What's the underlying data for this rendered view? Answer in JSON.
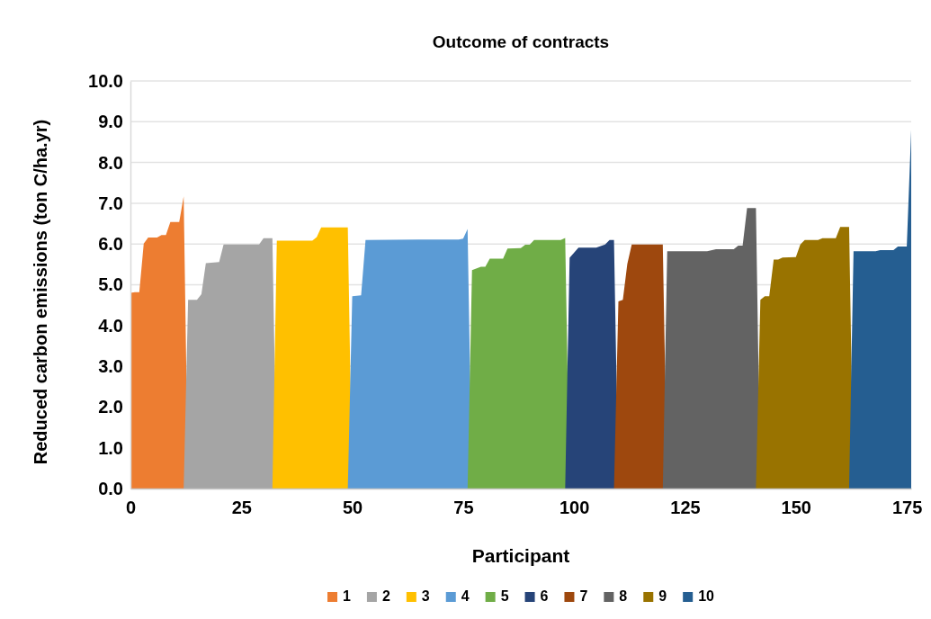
{
  "chart_data": {
    "type": "area",
    "title": "Outcome of contracts",
    "xlabel": "Participant",
    "ylabel": "Reduced carbon emissions (ton C/ha.yr)",
    "xlim": [
      0,
      176
    ],
    "xticks": [
      0,
      25,
      50,
      75,
      100,
      125,
      150,
      175
    ],
    "ylim": [
      0,
      10
    ],
    "yticks": [
      {
        "value": 0,
        "label": "0.0"
      },
      {
        "value": 1,
        "label": "1.0"
      },
      {
        "value": 2,
        "label": "2.0"
      },
      {
        "value": 3,
        "label": "3.0"
      },
      {
        "value": 4,
        "label": "4.0"
      },
      {
        "value": 5,
        "label": "5.0"
      },
      {
        "value": 6,
        "label": "6.0"
      },
      {
        "value": 7,
        "label": "7.0"
      },
      {
        "value": 8,
        "label": "8.0"
      },
      {
        "value": 9,
        "label": "9.0"
      },
      {
        "value": 10,
        "label": "10.0"
      }
    ],
    "grid": "y",
    "legend": "bottom",
    "series": [
      {
        "name": "1",
        "color": "#ed7d31",
        "x": [
          0,
          1,
          2,
          3,
          4,
          6,
          7,
          8,
          9,
          11,
          12,
          13
        ],
        "values": [
          4.8,
          4.82,
          4.82,
          6.01,
          6.16,
          6.16,
          6.22,
          6.22,
          6.54,
          6.54,
          7.17,
          0
        ]
      },
      {
        "name": "2",
        "color": "#a5a5a5",
        "x": [
          12,
          13,
          15,
          16,
          17,
          20,
          21,
          29,
          30,
          32,
          33
        ],
        "values": [
          0,
          4.63,
          4.63,
          4.77,
          5.53,
          5.56,
          5.99,
          5.99,
          6.14,
          6.14,
          0
        ]
      },
      {
        "name": "3",
        "color": "#ffc000",
        "x": [
          32,
          33,
          41,
          42,
          43,
          49,
          50
        ],
        "values": [
          0,
          6.08,
          6.08,
          6.17,
          6.41,
          6.41,
          0
        ]
      },
      {
        "name": "4",
        "color": "#5b9bd5",
        "x": [
          49,
          50,
          52,
          53,
          65,
          74,
          75,
          76,
          77
        ],
        "values": [
          0,
          4.72,
          4.74,
          6.1,
          6.11,
          6.11,
          6.13,
          6.37,
          0
        ]
      },
      {
        "name": "5",
        "color": "#70ad47",
        "x": [
          76,
          77,
          79,
          80,
          81,
          84,
          85,
          88,
          89,
          90,
          91,
          97,
          98,
          99
        ],
        "values": [
          0,
          5.36,
          5.44,
          5.44,
          5.64,
          5.64,
          5.89,
          5.9,
          5.98,
          5.98,
          6.1,
          6.1,
          6.15,
          0
        ]
      },
      {
        "name": "6",
        "color": "#264478",
        "x": [
          98,
          99,
          101,
          105,
          107,
          108,
          109,
          110
        ],
        "values": [
          0,
          5.66,
          5.91,
          5.91,
          5.99,
          6.1,
          6.1,
          0
        ]
      },
      {
        "name": "7",
        "color": "#9e480e",
        "x": [
          109,
          110,
          111,
          112,
          113,
          120,
          121
        ],
        "values": [
          0,
          4.59,
          4.63,
          5.51,
          5.99,
          5.99,
          0
        ]
      },
      {
        "name": "8",
        "color": "#636363",
        "x": [
          120,
          121,
          130,
          132,
          136,
          137,
          138,
          139,
          141,
          142
        ],
        "values": [
          0,
          5.82,
          5.82,
          5.87,
          5.87,
          5.96,
          5.96,
          6.88,
          6.88,
          0
        ]
      },
      {
        "name": "9",
        "color": "#997300",
        "x": [
          141,
          142,
          143,
          144,
          145,
          146,
          147,
          150,
          151,
          152,
          155,
          156,
          159,
          160,
          162,
          163
        ],
        "values": [
          0,
          4.63,
          4.72,
          4.72,
          5.62,
          5.62,
          5.67,
          5.68,
          5.99,
          6.1,
          6.1,
          6.14,
          6.14,
          6.42,
          6.42,
          0
        ]
      },
      {
        "name": "10",
        "color": "#255e91",
        "x": [
          162,
          163,
          168,
          169,
          172,
          173,
          175,
          176
        ],
        "values": [
          0,
          5.82,
          5.82,
          5.85,
          5.85,
          5.94,
          5.94,
          8.8
        ]
      }
    ]
  }
}
